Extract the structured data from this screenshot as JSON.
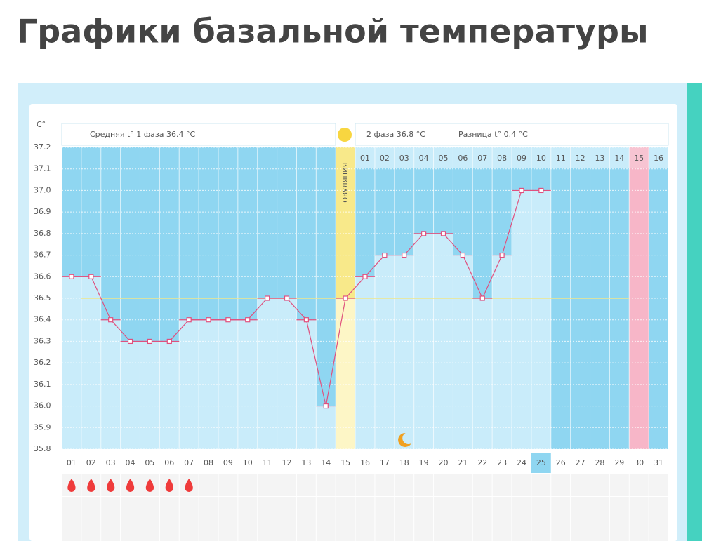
{
  "chart_data": {
    "type": "line",
    "title": "Графики базальной температуры",
    "y_unit": "C°",
    "phase1_summary": "Средняя t° 1 фаза 36.4 °C",
    "phase2_summary": "2 фаза 36.8 °C",
    "difference_summary": "Разница t° 0.4 °C",
    "ovulation_label": "ОВУЛЯЦИЯ",
    "categories": [
      "01",
      "02",
      "03",
      "04",
      "05",
      "06",
      "07",
      "08",
      "09",
      "10",
      "11",
      "12",
      "13",
      "14",
      "15",
      "16",
      "17",
      "18",
      "19",
      "20",
      "21",
      "22",
      "23",
      "24",
      "25",
      "26",
      "27",
      "28",
      "29",
      "30",
      "31"
    ],
    "values": [
      36.6,
      36.6,
      36.4,
      36.3,
      36.3,
      36.3,
      36.4,
      36.4,
      36.4,
      36.4,
      36.5,
      36.5,
      36.4,
      36.0,
      36.5,
      36.6,
      36.7,
      36.7,
      36.8,
      36.8,
      36.7,
      36.5,
      36.7,
      37.0,
      37.0,
      null,
      null,
      null,
      null,
      null,
      null
    ],
    "phase2_labels": [
      "01",
      "02",
      "03",
      "04",
      "05",
      "06",
      "07",
      "08",
      "09",
      "10",
      "11",
      "12",
      "13",
      "14",
      "15",
      "16"
    ],
    "ovulation_day": 15,
    "today": 25,
    "highlight_day": 30,
    "moon_day": 18,
    "period_days": [
      1,
      2,
      3,
      4,
      5,
      6,
      7
    ],
    "cover_line": 36.5,
    "ylim": [
      35.8,
      37.2
    ],
    "yticks": [
      37.2,
      37.1,
      {
        "value": 37,
        "label": "37.0"
      },
      36.9,
      36.8,
      36.7,
      36.6,
      36.5,
      36.4,
      36.3,
      36.2,
      36.1,
      {
        "value": 36,
        "label": "36.0"
      },
      35.9,
      35.8
    ],
    "line_color": "#e0507e",
    "grid": true
  }
}
